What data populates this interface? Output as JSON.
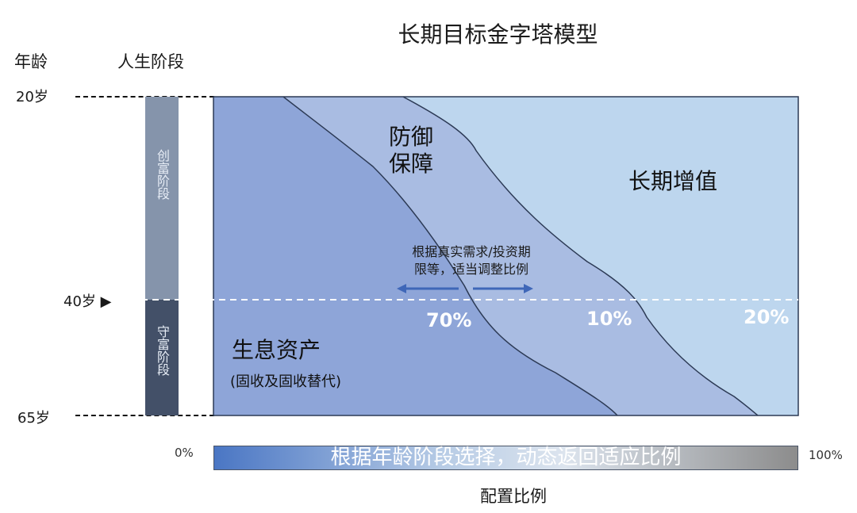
{
  "title": "长期目标金字塔模型",
  "headers": {
    "age": "年龄",
    "life_stage": "人生阶段"
  },
  "ages": {
    "start": "20岁",
    "mid": "40岁",
    "end": "65岁",
    "marker": "▶"
  },
  "stages": {
    "wealth_creation": "创富阶段",
    "wealth_preservation": "守富阶段"
  },
  "regions": {
    "income_assets": {
      "label": "生息资产",
      "sub": "(固收及固收替代)",
      "pct": "70%"
    },
    "protection": {
      "label_line1": "防御",
      "label_line2": "保障",
      "pct": "10%"
    },
    "growth": {
      "label": "长期增值",
      "pct": "20%"
    }
  },
  "note": {
    "line1": "根据真实需求/投资期",
    "line2": "限等，适当调整比例"
  },
  "allocation_bar": {
    "text": "根据年龄阶段选择，动态返回适应比例",
    "min": "0%",
    "max": "100%"
  },
  "xlabel": "配置比例",
  "colors": {
    "income_assets": "#8ea5d8",
    "protection": "#a9bce2",
    "growth": "#bdd6ee",
    "frame": "#2c3a55",
    "stage_top": "#8594ab",
    "stage_bottom": "#435068"
  }
}
